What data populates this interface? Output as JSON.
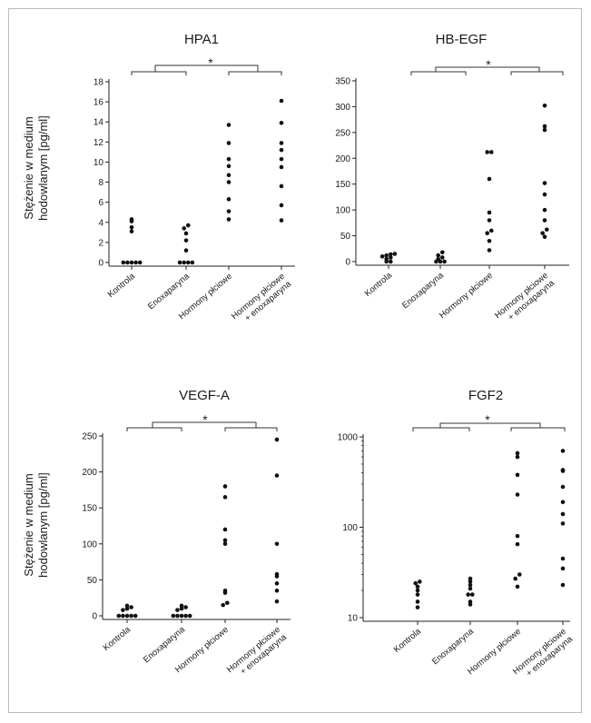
{
  "shared": {
    "ylabel_line1": "Stężenie w medium",
    "ylabel_line2": "hodowlanym [pg/ml]",
    "significance": "*"
  },
  "chart_data": [
    {
      "type": "scatter",
      "title": "HPA1",
      "categories": [
        "Kontrola",
        "Enoxaparyna",
        "Hormony płciowe",
        "Hormony płciowe|+ enoxaparyna"
      ],
      "yscale": "linear",
      "ylim": [
        0,
        18
      ],
      "yticks": [
        "0",
        "2",
        "4",
        "6",
        "8",
        "10",
        "12",
        "14",
        "16",
        "18"
      ],
      "values": [
        [
          0,
          0,
          0,
          0,
          0,
          3.1,
          3.5,
          4.1,
          4.3
        ],
        [
          0,
          0,
          0,
          0,
          1.2,
          2.2,
          2.9,
          3.4,
          3.7
        ],
        [
          4.3,
          5.1,
          6.3,
          8.0,
          8.7,
          9.6,
          10.3,
          11.9,
          13.7
        ],
        [
          4.2,
          5.7,
          7.6,
          9.5,
          10.3,
          11.2,
          11.9,
          13.9,
          16.1
        ]
      ],
      "bracket": "*"
    },
    {
      "type": "scatter",
      "title": "HB-EGF",
      "categories": [
        "Kontrola",
        "Enoxaparyna",
        "Hormony płciowe",
        "Hormony płciowe|+ enoxaparyna"
      ],
      "yscale": "linear",
      "ylim": [
        0,
        350
      ],
      "yticks": [
        "0",
        "50",
        "100",
        "150",
        "200",
        "250",
        "300",
        "350"
      ],
      "values": [
        [
          0,
          0,
          5,
          8,
          10,
          12,
          14,
          15
        ],
        [
          0,
          0,
          0,
          5,
          8,
          12,
          18
        ],
        [
          22,
          40,
          55,
          60,
          80,
          95,
          160,
          212,
          212
        ],
        [
          48,
          55,
          62,
          80,
          100,
          130,
          152,
          255,
          262,
          302
        ]
      ],
      "bracket": "*"
    },
    {
      "type": "scatter",
      "title": "VEGF-A",
      "categories": [
        "Kontrola",
        "Enoxaparyna",
        "Hormony płciowe",
        "Hormony płciowe|+ enoxaparyna"
      ],
      "yscale": "linear",
      "ylim": [
        0,
        250
      ],
      "yticks": [
        "0",
        "50",
        "100",
        "150",
        "200",
        "250"
      ],
      "values": [
        [
          0,
          0,
          0,
          0,
          0,
          8,
          10,
          12,
          14
        ],
        [
          0,
          0,
          0,
          0,
          0,
          8,
          10,
          12,
          14
        ],
        [
          15,
          18,
          32,
          35,
          100,
          105,
          120,
          165,
          180
        ],
        [
          20,
          35,
          45,
          55,
          58,
          100,
          195,
          245
        ]
      ],
      "bracket": "*"
    },
    {
      "type": "scatter",
      "title": "FGF2",
      "categories": [
        "Kontrola",
        "Enoxaparyna",
        "Hormony płciowe",
        "Hormony płciowe|+ enoxaparyna"
      ],
      "yscale": "log",
      "ylim": [
        10,
        1000
      ],
      "yticks": [
        "10",
        "100",
        "1000"
      ],
      "values": [
        [
          13,
          15,
          18,
          20,
          22,
          24,
          25
        ],
        [
          14,
          15,
          18,
          18,
          21,
          23,
          25,
          27
        ],
        [
          22,
          27,
          30,
          65,
          80,
          230,
          380,
          600,
          660
        ],
        [
          23,
          35,
          45,
          110,
          140,
          190,
          280,
          420,
          430,
          700
        ]
      ],
      "bracket": "*"
    }
  ]
}
